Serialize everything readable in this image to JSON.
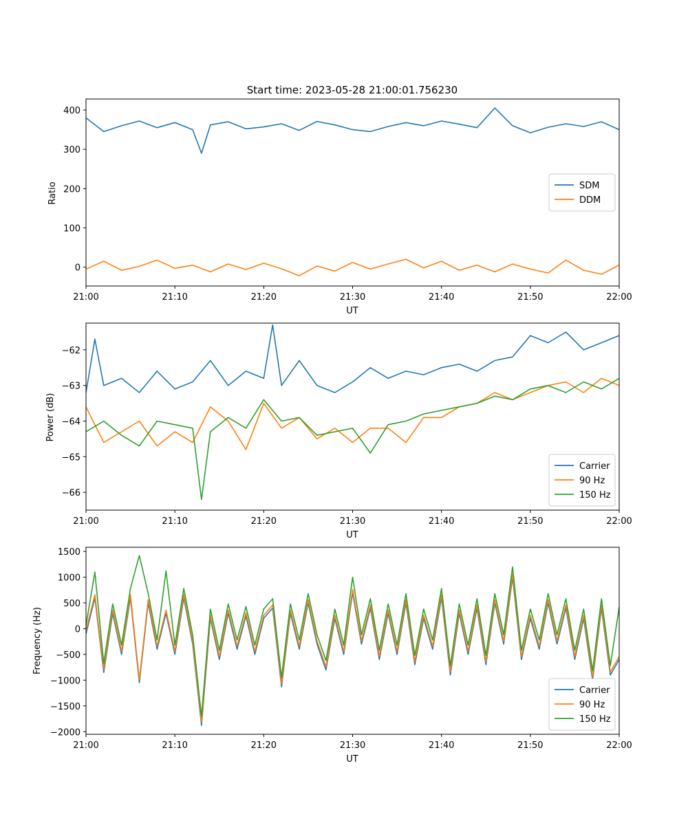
{
  "figure": {
    "title": "Start time: 2023-05-28 21:00:01.756230"
  },
  "chart_data": [
    {
      "type": "line",
      "xlabel": "UT",
      "ylabel": "Ratio",
      "xlim": [
        "21:00",
        "22:00"
      ],
      "ylim": [
        -48,
        428
      ],
      "xticks": [
        "21:00",
        "21:10",
        "21:20",
        "21:30",
        "21:40",
        "21:50",
        "22:00"
      ],
      "yticks": [
        0,
        100,
        200,
        300,
        400
      ],
      "grid": false,
      "legend": "center-right",
      "series": [
        {
          "name": "SDM",
          "color": "#1f77b4",
          "x": [
            "21:00",
            "21:02",
            "21:04",
            "21:06",
            "21:08",
            "21:10",
            "21:12",
            "21:13",
            "21:14",
            "21:16",
            "21:18",
            "21:20",
            "21:22",
            "21:24",
            "21:26",
            "21:28",
            "21:30",
            "21:32",
            "21:34",
            "21:36",
            "21:38",
            "21:40",
            "21:42",
            "21:44",
            "21:46",
            "21:48",
            "21:50",
            "21:52",
            "21:54",
            "21:56",
            "21:58",
            "22:00"
          ],
          "values": [
            380,
            345,
            360,
            372,
            355,
            368,
            350,
            290,
            362,
            370,
            352,
            357,
            365,
            348,
            371,
            362,
            350,
            345,
            358,
            368,
            360,
            372,
            364,
            355,
            405,
            360,
            342,
            356,
            365,
            358,
            370,
            350
          ]
        },
        {
          "name": "DDM",
          "color": "#ff7f0e",
          "x": [
            "21:00",
            "21:02",
            "21:04",
            "21:06",
            "21:08",
            "21:10",
            "21:12",
            "21:14",
            "21:16",
            "21:18",
            "21:20",
            "21:22",
            "21:24",
            "21:26",
            "21:28",
            "21:30",
            "21:32",
            "21:34",
            "21:36",
            "21:38",
            "21:40",
            "21:42",
            "21:44",
            "21:46",
            "21:48",
            "21:50",
            "21:52",
            "21:54",
            "21:56",
            "21:58",
            "22:00"
          ],
          "values": [
            -5,
            15,
            -8,
            2,
            18,
            -3,
            5,
            -12,
            8,
            -6,
            10,
            -4,
            -22,
            3,
            -10,
            12,
            -5,
            8,
            20,
            -2,
            15,
            -8,
            5,
            -12,
            8,
            -5,
            -15,
            18,
            -8,
            -18,
            5
          ]
        }
      ]
    },
    {
      "type": "line",
      "xlabel": "UT",
      "ylabel": "Power (dB)",
      "xlim": [
        "21:00",
        "22:00"
      ],
      "ylim": [
        -66.5,
        -61.25
      ],
      "xticks": [
        "21:00",
        "21:10",
        "21:20",
        "21:30",
        "21:40",
        "21:50",
        "22:00"
      ],
      "yticks": [
        -66,
        -65,
        -64,
        -63,
        -62
      ],
      "grid": false,
      "legend": "lower-right",
      "series": [
        {
          "name": "Carrier",
          "color": "#1f77b4",
          "x": [
            "21:00",
            "21:01",
            "21:02",
            "21:04",
            "21:06",
            "21:08",
            "21:10",
            "21:12",
            "21:14",
            "21:16",
            "21:18",
            "21:20",
            "21:21",
            "21:22",
            "21:24",
            "21:26",
            "21:28",
            "21:30",
            "21:32",
            "21:34",
            "21:36",
            "21:38",
            "21:40",
            "21:42",
            "21:44",
            "21:46",
            "21:48",
            "21:50",
            "21:52",
            "21:54",
            "21:56",
            "21:58",
            "22:00"
          ],
          "values": [
            -63.2,
            -61.7,
            -63.0,
            -62.8,
            -63.2,
            -62.6,
            -63.1,
            -62.9,
            -62.3,
            -63.0,
            -62.6,
            -62.8,
            -61.3,
            -63.0,
            -62.3,
            -63.0,
            -63.2,
            -62.9,
            -62.5,
            -62.8,
            -62.6,
            -62.7,
            -62.5,
            -62.4,
            -62.6,
            -62.3,
            -62.2,
            -61.6,
            -61.8,
            -61.5,
            -62.0,
            -61.8,
            -61.6
          ]
        },
        {
          "name": "90 Hz",
          "color": "#ff7f0e",
          "x": [
            "21:00",
            "21:02",
            "21:04",
            "21:06",
            "21:08",
            "21:10",
            "21:12",
            "21:14",
            "21:16",
            "21:18",
            "21:20",
            "21:22",
            "21:24",
            "21:26",
            "21:28",
            "21:30",
            "21:32",
            "21:34",
            "21:36",
            "21:38",
            "21:40",
            "21:42",
            "21:44",
            "21:46",
            "21:48",
            "21:50",
            "21:52",
            "21:54",
            "21:56",
            "21:58",
            "22:00"
          ],
          "values": [
            -63.6,
            -64.6,
            -64.3,
            -64.0,
            -64.7,
            -64.3,
            -64.6,
            -63.6,
            -64.0,
            -64.8,
            -63.5,
            -64.2,
            -63.9,
            -64.5,
            -64.2,
            -64.6,
            -64.2,
            -64.2,
            -64.6,
            -63.9,
            -63.9,
            -63.6,
            -63.5,
            -63.2,
            -63.4,
            -63.2,
            -63.0,
            -62.9,
            -63.2,
            -62.8,
            -63.0
          ]
        },
        {
          "name": "150 Hz",
          "color": "#2ca02c",
          "x": [
            "21:00",
            "21:02",
            "21:04",
            "21:06",
            "21:08",
            "21:10",
            "21:12",
            "21:13",
            "21:14",
            "21:16",
            "21:18",
            "21:20",
            "21:22",
            "21:24",
            "21:26",
            "21:28",
            "21:30",
            "21:32",
            "21:34",
            "21:36",
            "21:38",
            "21:40",
            "21:42",
            "21:44",
            "21:46",
            "21:48",
            "21:50",
            "21:52",
            "21:54",
            "21:56",
            "21:58",
            "22:00"
          ],
          "values": [
            -64.3,
            -64.0,
            -64.4,
            -64.7,
            -64.0,
            -64.1,
            -64.2,
            -66.2,
            -64.3,
            -63.9,
            -64.2,
            -63.4,
            -64.0,
            -63.9,
            -64.4,
            -64.3,
            -64.2,
            -64.9,
            -64.1,
            -64.0,
            -63.8,
            -63.7,
            -63.6,
            -63.5,
            -63.3,
            -63.4,
            -63.1,
            -63.0,
            -63.2,
            -62.9,
            -63.1,
            -62.8
          ]
        }
      ]
    },
    {
      "type": "line",
      "xlabel": "UT",
      "ylabel": "Frequency (Hz)",
      "xlim": [
        "21:00",
        "22:00"
      ],
      "ylim": [
        -2050,
        1580
      ],
      "xticks": [
        "21:00",
        "21:10",
        "21:20",
        "21:30",
        "21:40",
        "21:50",
        "22:00"
      ],
      "yticks": [
        -2000,
        -1500,
        -1000,
        -500,
        0,
        500,
        1000,
        1500
      ],
      "grid": false,
      "legend": "lower-right",
      "series": [
        {
          "name": "Carrier",
          "color": "#1f77b4",
          "x": [
            "21:00",
            "21:01",
            "21:02",
            "21:03",
            "21:04",
            "21:05",
            "21:06",
            "21:07",
            "21:08",
            "21:09",
            "21:10",
            "21:11",
            "21:12",
            "21:13",
            "21:14",
            "21:15",
            "21:16",
            "21:17",
            "21:18",
            "21:19",
            "21:20",
            "21:21",
            "21:22",
            "21:23",
            "21:24",
            "21:25",
            "21:26",
            "21:27",
            "21:28",
            "21:29",
            "21:30",
            "21:31",
            "21:32",
            "21:33",
            "21:34",
            "21:35",
            "21:36",
            "21:37",
            "21:38",
            "21:39",
            "21:40",
            "21:41",
            "21:42",
            "21:43",
            "21:44",
            "21:45",
            "21:46",
            "21:47",
            "21:48",
            "21:49",
            "21:50",
            "21:51",
            "21:52",
            "21:53",
            "21:54",
            "21:55",
            "21:56",
            "21:57",
            "21:58",
            "21:59",
            "22:00"
          ],
          "values": [
            -100,
            600,
            -850,
            300,
            -500,
            600,
            -1050,
            500,
            -400,
            300,
            -500,
            600,
            -300,
            -1880,
            200,
            -600,
            300,
            -400,
            250,
            -500,
            200,
            400,
            -1130,
            300,
            -400,
            500,
            -300,
            -800,
            200,
            -500,
            700,
            -300,
            400,
            -600,
            300,
            -500,
            500,
            -700,
            200,
            -400,
            600,
            -900,
            300,
            -500,
            400,
            -700,
            500,
            -300,
            1000,
            -600,
            200,
            -400,
            500,
            -300,
            400,
            -600,
            200,
            -1000,
            400,
            -900,
            -600
          ]
        },
        {
          "name": "90 Hz",
          "color": "#ff7f0e",
          "x": [
            "21:00",
            "21:01",
            "21:02",
            "21:03",
            "21:04",
            "21:05",
            "21:06",
            "21:07",
            "21:08",
            "21:09",
            "21:10",
            "21:11",
            "21:12",
            "21:13",
            "21:14",
            "21:15",
            "21:16",
            "21:17",
            "21:18",
            "21:19",
            "21:20",
            "21:21",
            "21:22",
            "21:23",
            "21:24",
            "21:25",
            "21:26",
            "21:27",
            "21:28",
            "21:29",
            "21:30",
            "21:31",
            "21:32",
            "21:33",
            "21:34",
            "21:35",
            "21:36",
            "21:37",
            "21:38",
            "21:39",
            "21:40",
            "21:41",
            "21:42",
            "21:43",
            "21:44",
            "21:45",
            "21:46",
            "21:47",
            "21:48",
            "21:49",
            "21:50",
            "21:51",
            "21:52",
            "21:53",
            "21:54",
            "21:55",
            "21:56",
            "21:57",
            "21:58",
            "21:59",
            "22:00"
          ],
          "values": [
            -40,
            660,
            -790,
            360,
            -440,
            660,
            -990,
            560,
            -340,
            360,
            -440,
            660,
            -240,
            -1820,
            260,
            -540,
            360,
            -340,
            310,
            -440,
            260,
            460,
            -1070,
            360,
            -340,
            560,
            -240,
            -740,
            260,
            -440,
            760,
            -240,
            460,
            -540,
            360,
            -440,
            560,
            -640,
            260,
            -340,
            660,
            -840,
            360,
            -440,
            460,
            -640,
            560,
            -240,
            1060,
            -540,
            260,
            -340,
            560,
            -240,
            460,
            -540,
            260,
            -940,
            460,
            -840,
            -540
          ]
        },
        {
          "name": "150 Hz",
          "color": "#2ca02c",
          "x": [
            "21:00",
            "21:01",
            "21:02",
            "21:03",
            "21:04",
            "21:05",
            "21:06",
            "21:07",
            "21:08",
            "21:09",
            "21:10",
            "21:11",
            "21:12",
            "21:13",
            "21:14",
            "21:15",
            "21:16",
            "21:17",
            "21:18",
            "21:19",
            "21:20",
            "21:21",
            "21:22",
            "21:23",
            "21:24",
            "21:25",
            "21:26",
            "21:27",
            "21:28",
            "21:29",
            "21:30",
            "21:31",
            "21:32",
            "21:33",
            "21:34",
            "21:35",
            "21:36",
            "21:37",
            "21:38",
            "21:39",
            "21:40",
            "21:41",
            "21:42",
            "21:43",
            "21:44",
            "21:45",
            "21:46",
            "21:47",
            "21:48",
            "21:49",
            "21:50",
            "21:51",
            "21:52",
            "21:53",
            "21:54",
            "21:55",
            "21:56",
            "21:57",
            "21:58",
            "21:59",
            "22:00"
          ],
          "values": [
            60,
            1100,
            -680,
            480,
            -320,
            780,
            1420,
            680,
            -220,
            1120,
            -320,
            780,
            -120,
            -1700,
            380,
            -420,
            480,
            -220,
            430,
            -320,
            380,
            580,
            -950,
            480,
            -220,
            680,
            -120,
            -620,
            380,
            -320,
            1000,
            -120,
            580,
            -420,
            480,
            -320,
            680,
            -520,
            380,
            -220,
            780,
            -720,
            480,
            -320,
            580,
            -520,
            680,
            -120,
            1200,
            -420,
            380,
            -220,
            680,
            -120,
            580,
            -420,
            380,
            -820,
            580,
            -720,
            420
          ]
        }
      ]
    }
  ]
}
